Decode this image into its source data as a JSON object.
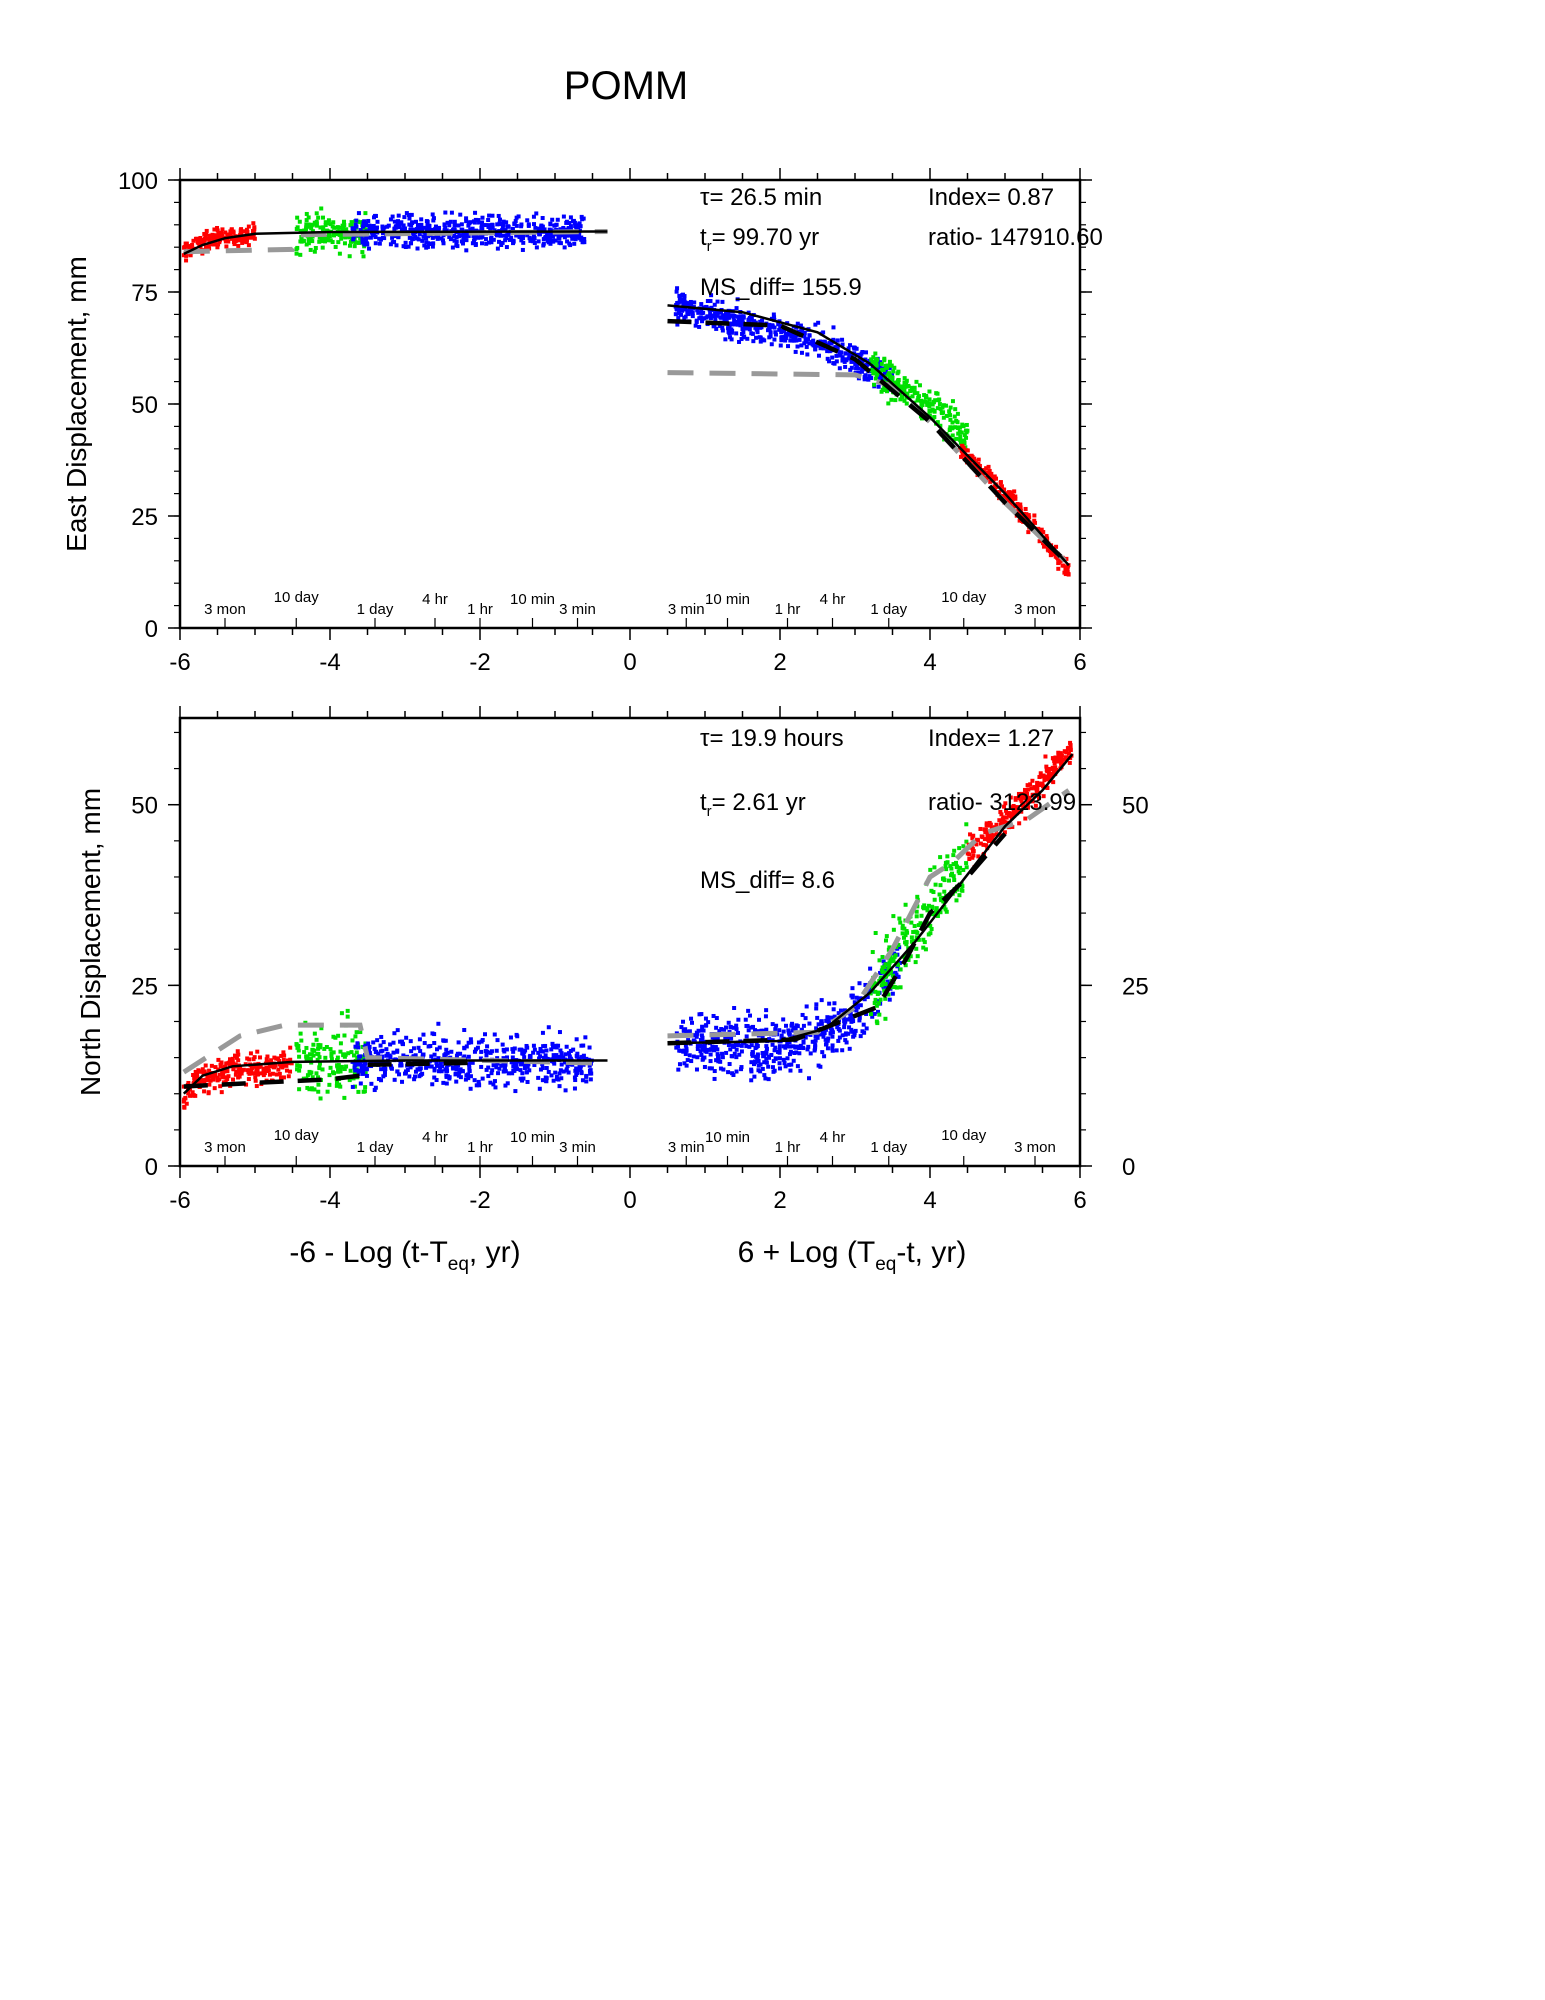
{
  "title": "POMM",
  "colors": {
    "red": "#ff0000",
    "green": "#00e000",
    "blue": "#0000ff",
    "black": "#000000",
    "gray": "#999999"
  },
  "chart_data": [
    {
      "type": "scatter",
      "panel": "top",
      "ylabel": "East Displacement, mm",
      "xlim": [
        -6,
        6
      ],
      "ylim": [
        0,
        100
      ],
      "x_ticks": [
        "-6",
        "-4",
        "-2",
        "0",
        "2",
        "4",
        "6"
      ],
      "y_ticks": [
        "0",
        "25",
        "50",
        "75",
        "100"
      ],
      "right_y_ticks": [],
      "time_labels": [
        "3 mon",
        "10 day",
        "1 day",
        "4 hr",
        "1 hr",
        "10 min",
        "3 min",
        "3 min",
        "10 min",
        "1 hr",
        "4 hr",
        "1 day",
        "10 day",
        "3 mon"
      ],
      "annotations": {
        "tau": "τ= 26.5 min",
        "index": "Index= 0.87",
        "tr_prefix": "t",
        "tr_sub": "r",
        "tr_value": "= 99.70 yr",
        "ratio": "ratio- 147910.60",
        "ms_diff": "MS_diff= 155.9"
      },
      "series": [
        {
          "name": "",
          "color": "red",
          "side": "left",
          "x_range": [
            -5.95,
            -5.0
          ],
          "trend": [
            [
              -5.95,
              84
            ],
            [
              -5.7,
              86
            ],
            [
              -5.4,
              87.3
            ],
            [
              -5.0,
              88
            ]
          ],
          "spread": 1.5
        },
        {
          "name": "",
          "color": "green",
          "side": "left",
          "x_range": [
            -4.45,
            -3.5
          ],
          "trend": [
            [
              -4.45,
              88
            ],
            [
              -3.5,
              88.3
            ]
          ],
          "spread": 3
        },
        {
          "name": "",
          "color": "blue",
          "side": "left",
          "x_range": [
            -3.7,
            -0.6
          ],
          "trend": [
            [
              -3.7,
              88.3
            ],
            [
              -0.6,
              88.5
            ]
          ],
          "spread": 2.5
        },
        {
          "name": "",
          "color": "blue",
          "side": "right",
          "x_range": [
            0.6,
            3.5
          ],
          "trend": [
            [
              0.6,
              72
            ],
            [
              1.5,
              68
            ],
            [
              2.5,
              64
            ],
            [
              3.0,
              60
            ],
            [
              3.5,
              55
            ]
          ],
          "spread": 2.5
        },
        {
          "name": "",
          "color": "green",
          "side": "right",
          "x_range": [
            3.2,
            4.5
          ],
          "trend": [
            [
              3.2,
              58
            ],
            [
              3.8,
              52
            ],
            [
              4.5,
              43
            ]
          ],
          "spread": 3
        },
        {
          "name": "",
          "color": "red",
          "side": "right",
          "x_range": [
            4.4,
            5.85
          ],
          "trend": [
            [
              4.4,
              40
            ],
            [
              5.0,
              30
            ],
            [
              5.5,
              20
            ],
            [
              5.85,
              13
            ]
          ],
          "spread": 1.5
        }
      ],
      "fit_black": [
        [
          [
            -5.95,
            83.5
          ],
          [
            -5.7,
            85.5
          ],
          [
            -5.4,
            87
          ],
          [
            -5.0,
            88
          ],
          [
            -4.0,
            88.4
          ],
          [
            -0.3,
            88.5
          ]
        ],
        [
          [
            0.5,
            72
          ],
          [
            1.5,
            70.5
          ],
          [
            2.5,
            66
          ],
          [
            3.2,
            59
          ],
          [
            4.0,
            47
          ],
          [
            5.0,
            30
          ],
          [
            5.85,
            14
          ]
        ]
      ],
      "fit_gray": [
        [
          [
            -5.95,
            84
          ],
          [
            -4.5,
            84.5
          ],
          [
            -4.4,
            87.8
          ],
          [
            -0.3,
            88.5
          ]
        ],
        [
          [
            0.5,
            57
          ],
          [
            3.0,
            56.5
          ],
          [
            3.5,
            54
          ],
          [
            4.0,
            46
          ],
          [
            5.0,
            28
          ],
          [
            5.8,
            15
          ]
        ]
      ],
      "fit_black_dashed": [
        [
          [
            0.5,
            68.5
          ],
          [
            2.0,
            67.5
          ],
          [
            3.0,
            60
          ],
          [
            4.0,
            46
          ],
          [
            5.0,
            28
          ],
          [
            5.8,
            15
          ]
        ]
      ]
    },
    {
      "type": "scatter",
      "panel": "bottom",
      "ylabel": "North Displacement, mm",
      "xlabel_left": "-6 - Log (t-T",
      "xlabel_left_sub": "eq",
      "xlabel_left_end": ", yr)",
      "xlabel_right": "6 + Log (T",
      "xlabel_right_sub": "eq",
      "xlabel_right_end": "-t, yr)",
      "xlim": [
        -6,
        6
      ],
      "ylim": [
        0,
        62
      ],
      "x_ticks": [
        "-6",
        "-4",
        "-2",
        "0",
        "2",
        "4",
        "6"
      ],
      "y_ticks": [
        "0",
        "25",
        "50"
      ],
      "right_y_ticks": [
        "0",
        "25",
        "50"
      ],
      "time_labels": [
        "3 mon",
        "10 day",
        "1 day",
        "4 hr",
        "1 hr",
        "10 min",
        "3 min",
        "3 min",
        "10 min",
        "1 hr",
        "4 hr",
        "1 day",
        "10 day",
        "3 mon"
      ],
      "annotations": {
        "tau": "τ= 19.9 hours",
        "index": "Index= 1.27",
        "tr_prefix": "t",
        "tr_sub": "r",
        "tr_value": "= 2.61 yr",
        "ratio": "ratio- 3123.99",
        "ms_diff": "MS_diff= 8.6"
      },
      "series": [
        {
          "name": "",
          "color": "red",
          "side": "left",
          "x_range": [
            -5.95,
            -4.5
          ],
          "trend": [
            [
              -5.95,
              10
            ],
            [
              -5.7,
              12
            ],
            [
              -5.3,
              13.5
            ],
            [
              -4.5,
              14
            ]
          ],
          "spread": 1.5
        },
        {
          "name": "",
          "color": "green",
          "side": "left",
          "x_range": [
            -4.45,
            -3.5
          ],
          "trend": [
            [
              -4.45,
              14.5
            ],
            [
              -3.5,
              14.5
            ]
          ],
          "spread": 3.5
        },
        {
          "name": "",
          "color": "blue",
          "side": "left",
          "x_range": [
            -3.7,
            -0.5
          ],
          "trend": [
            [
              -3.7,
              14.5
            ],
            [
              -0.5,
              14.5
            ]
          ],
          "spread": 2.5
        },
        {
          "name": "",
          "color": "blue",
          "side": "right",
          "x_range": [
            0.6,
            3.6
          ],
          "trend": [
            [
              0.6,
              17
            ],
            [
              2.0,
              16.5
            ],
            [
              2.8,
              19
            ],
            [
              3.3,
              24
            ],
            [
              3.6,
              28
            ]
          ],
          "spread": 3
        },
        {
          "name": "",
          "color": "green",
          "side": "right",
          "x_range": [
            3.2,
            4.5
          ],
          "trend": [
            [
              3.2,
              24
            ],
            [
              3.8,
              33
            ],
            [
              4.5,
              42
            ]
          ],
          "spread": 3.5
        },
        {
          "name": "",
          "color": "red",
          "side": "right",
          "x_range": [
            4.5,
            5.9
          ],
          "trend": [
            [
              4.5,
              43
            ],
            [
              5.0,
              48
            ],
            [
              5.5,
              53
            ],
            [
              5.9,
              58
            ]
          ],
          "spread": 1.5
        }
      ],
      "fit_black": [
        [
          [
            -5.95,
            10
          ],
          [
            -5.7,
            12.5
          ],
          [
            -5.3,
            13.8
          ],
          [
            -4.5,
            14.4
          ],
          [
            -3.0,
            14.6
          ],
          [
            -0.3,
            14.6
          ]
        ],
        [
          [
            0.5,
            17
          ],
          [
            2.0,
            17.3
          ],
          [
            2.6,
            19
          ],
          [
            3.2,
            24
          ],
          [
            3.8,
            31
          ],
          [
            4.4,
            39
          ],
          [
            5.0,
            47
          ],
          [
            5.5,
            52
          ],
          [
            5.9,
            57
          ]
        ]
      ],
      "fit_gray": [
        [
          [
            -5.95,
            13
          ],
          [
            -5.5,
            16
          ],
          [
            -5.2,
            18
          ],
          [
            -4.6,
            19.5
          ],
          [
            -3.6,
            19.5
          ],
          [
            -3.5,
            15
          ],
          [
            -0.3,
            14.2
          ]
        ],
        [
          [
            0.5,
            18
          ],
          [
            2.5,
            18.5
          ],
          [
            3.0,
            22
          ],
          [
            3.5,
            30
          ],
          [
            3.8,
            36
          ],
          [
            4.0,
            40
          ],
          [
            4.3,
            42
          ],
          [
            4.7,
            46
          ],
          [
            5.3,
            48
          ],
          [
            5.85,
            52
          ]
        ]
      ],
      "fit_black_dashed": [
        [
          [
            -5.95,
            11
          ],
          [
            -5.0,
            11.5
          ],
          [
            -4.0,
            12
          ],
          [
            -3.6,
            12.5
          ],
          [
            -3.5,
            14
          ],
          [
            -2.0,
            14.3
          ]
        ],
        [
          [
            0.5,
            17
          ],
          [
            2.2,
            17.5
          ],
          [
            3.3,
            22
          ],
          [
            3.7,
            29
          ],
          [
            4.0,
            35
          ],
          [
            4.5,
            40
          ],
          [
            5.0,
            46
          ]
        ]
      ]
    }
  ]
}
